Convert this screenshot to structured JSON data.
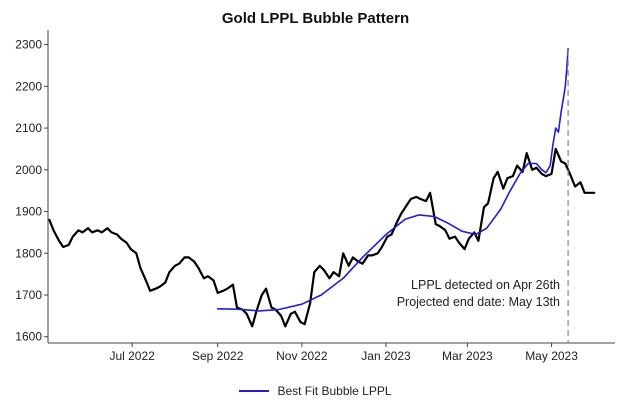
{
  "chart_data": {
    "type": "line",
    "title": "Gold LPPL Bubble Pattern",
    "xlabel": "",
    "ylabel": "",
    "ylim": [
      1585,
      2335
    ],
    "xlim": [
      "2022-05-01",
      "2023-06-16"
    ],
    "yticks": [
      1600,
      1700,
      1800,
      1900,
      2000,
      2100,
      2200,
      2300
    ],
    "xticks": [
      {
        "date": "2022-07-01",
        "label": "Jul 2022"
      },
      {
        "date": "2022-09-01",
        "label": "Sep 2022"
      },
      {
        "date": "2022-11-01",
        "label": "Nov 2022"
      },
      {
        "date": "2023-01-01",
        "label": "Jan 2023"
      },
      {
        "date": "2023-03-01",
        "label": "Mar 2023"
      },
      {
        "date": "2023-05-01",
        "label": "May 2023"
      }
    ],
    "grid": false,
    "legend_position": "bottom-center",
    "series": [
      {
        "name": "",
        "color": "#000000",
        "points": [
          [
            "2022-05-02",
            1880
          ],
          [
            "2022-05-05",
            1855
          ],
          [
            "2022-05-09",
            1830
          ],
          [
            "2022-05-12",
            1815
          ],
          [
            "2022-05-16",
            1820
          ],
          [
            "2022-05-19",
            1840
          ],
          [
            "2022-05-23",
            1855
          ],
          [
            "2022-05-26",
            1850
          ],
          [
            "2022-05-30",
            1860
          ],
          [
            "2022-06-02",
            1850
          ],
          [
            "2022-06-06",
            1855
          ],
          [
            "2022-06-09",
            1850
          ],
          [
            "2022-06-13",
            1860
          ],
          [
            "2022-06-16",
            1850
          ],
          [
            "2022-06-20",
            1845
          ],
          [
            "2022-06-23",
            1835
          ],
          [
            "2022-06-27",
            1825
          ],
          [
            "2022-06-30",
            1810
          ],
          [
            "2022-07-04",
            1800
          ],
          [
            "2022-07-07",
            1765
          ],
          [
            "2022-07-11",
            1735
          ],
          [
            "2022-07-14",
            1710
          ],
          [
            "2022-07-18",
            1715
          ],
          [
            "2022-07-21",
            1720
          ],
          [
            "2022-07-25",
            1730
          ],
          [
            "2022-07-28",
            1755
          ],
          [
            "2022-08-01",
            1770
          ],
          [
            "2022-08-04",
            1775
          ],
          [
            "2022-08-08",
            1790
          ],
          [
            "2022-08-11",
            1790
          ],
          [
            "2022-08-15",
            1780
          ],
          [
            "2022-08-18",
            1765
          ],
          [
            "2022-08-22",
            1740
          ],
          [
            "2022-08-25",
            1745
          ],
          [
            "2022-08-29",
            1735
          ],
          [
            "2022-09-01",
            1705
          ],
          [
            "2022-09-05",
            1710
          ],
          [
            "2022-09-08",
            1715
          ],
          [
            "2022-09-12",
            1725
          ],
          [
            "2022-09-15",
            1670
          ],
          [
            "2022-09-19",
            1665
          ],
          [
            "2022-09-22",
            1655
          ],
          [
            "2022-09-26",
            1625
          ],
          [
            "2022-09-29",
            1660
          ],
          [
            "2022-10-03",
            1700
          ],
          [
            "2022-10-06",
            1715
          ],
          [
            "2022-10-10",
            1670
          ],
          [
            "2022-10-13",
            1665
          ],
          [
            "2022-10-17",
            1650
          ],
          [
            "2022-10-20",
            1625
          ],
          [
            "2022-10-24",
            1655
          ],
          [
            "2022-10-27",
            1660
          ],
          [
            "2022-10-31",
            1635
          ],
          [
            "2022-11-03",
            1630
          ],
          [
            "2022-11-07",
            1680
          ],
          [
            "2022-11-10",
            1755
          ],
          [
            "2022-11-14",
            1770
          ],
          [
            "2022-11-17",
            1760
          ],
          [
            "2022-11-21",
            1740
          ],
          [
            "2022-11-24",
            1755
          ],
          [
            "2022-11-28",
            1745
          ],
          [
            "2022-12-01",
            1800
          ],
          [
            "2022-12-05",
            1770
          ],
          [
            "2022-12-08",
            1790
          ],
          [
            "2022-12-12",
            1780
          ],
          [
            "2022-12-15",
            1775
          ],
          [
            "2022-12-19",
            1795
          ],
          [
            "2022-12-22",
            1795
          ],
          [
            "2022-12-26",
            1800
          ],
          [
            "2022-12-29",
            1815
          ],
          [
            "2023-01-02",
            1840
          ],
          [
            "2023-01-05",
            1845
          ],
          [
            "2023-01-09",
            1875
          ],
          [
            "2023-01-12",
            1895
          ],
          [
            "2023-01-16",
            1915
          ],
          [
            "2023-01-19",
            1930
          ],
          [
            "2023-01-23",
            1935
          ],
          [
            "2023-01-26",
            1930
          ],
          [
            "2023-01-30",
            1925
          ],
          [
            "2023-02-02",
            1945
          ],
          [
            "2023-02-06",
            1870
          ],
          [
            "2023-02-09",
            1865
          ],
          [
            "2023-02-13",
            1855
          ],
          [
            "2023-02-16",
            1835
          ],
          [
            "2023-02-20",
            1840
          ],
          [
            "2023-02-23",
            1825
          ],
          [
            "2023-02-27",
            1810
          ],
          [
            "2023-03-02",
            1835
          ],
          [
            "2023-03-06",
            1850
          ],
          [
            "2023-03-09",
            1830
          ],
          [
            "2023-03-13",
            1910
          ],
          [
            "2023-03-16",
            1920
          ],
          [
            "2023-03-20",
            1980
          ],
          [
            "2023-03-23",
            1995
          ],
          [
            "2023-03-27",
            1955
          ],
          [
            "2023-03-30",
            1980
          ],
          [
            "2023-04-03",
            1985
          ],
          [
            "2023-04-06",
            2010
          ],
          [
            "2023-04-10",
            1995
          ],
          [
            "2023-04-13",
            2040
          ],
          [
            "2023-04-17",
            2000
          ],
          [
            "2023-04-20",
            2005
          ],
          [
            "2023-04-24",
            1990
          ],
          [
            "2023-04-27",
            1985
          ],
          [
            "2023-05-01",
            1990
          ],
          [
            "2023-05-04",
            2050
          ],
          [
            "2023-05-08",
            2020
          ],
          [
            "2023-05-11",
            2015
          ],
          [
            "2023-05-15",
            1985
          ],
          [
            "2023-05-18",
            1960
          ],
          [
            "2023-05-22",
            1970
          ],
          [
            "2023-05-25",
            1945
          ],
          [
            "2023-05-29",
            1945
          ],
          [
            "2023-06-01",
            1945
          ]
        ]
      },
      {
        "name": "Best Fit Bubble LPPL",
        "color": "#1f1fd0",
        "points": [
          [
            "2022-09-01",
            1667
          ],
          [
            "2022-09-15",
            1666
          ],
          [
            "2022-10-01",
            1662
          ],
          [
            "2022-10-15",
            1665
          ],
          [
            "2022-11-01",
            1678
          ],
          [
            "2022-11-15",
            1700
          ],
          [
            "2022-12-01",
            1740
          ],
          [
            "2022-12-15",
            1790
          ],
          [
            "2023-01-01",
            1845
          ],
          [
            "2023-01-15",
            1882
          ],
          [
            "2023-01-25",
            1892
          ],
          [
            "2023-02-05",
            1888
          ],
          [
            "2023-02-15",
            1872
          ],
          [
            "2023-02-25",
            1853
          ],
          [
            "2023-03-07",
            1845
          ],
          [
            "2023-03-15",
            1860
          ],
          [
            "2023-03-25",
            1905
          ],
          [
            "2023-04-01",
            1950
          ],
          [
            "2023-04-08",
            1990
          ],
          [
            "2023-04-14",
            2015
          ],
          [
            "2023-04-20",
            2015
          ],
          [
            "2023-04-24",
            2000
          ],
          [
            "2023-04-27",
            1993
          ],
          [
            "2023-04-30",
            2010
          ],
          [
            "2023-05-02",
            2060
          ],
          [
            "2023-05-04",
            2100
          ],
          [
            "2023-05-06",
            2090
          ],
          [
            "2023-05-08",
            2140
          ],
          [
            "2023-05-10",
            2180
          ],
          [
            "2023-05-11",
            2200
          ],
          [
            "2023-05-12",
            2240
          ],
          [
            "2023-05-13",
            2290
          ]
        ]
      }
    ],
    "projected_end_date": "2023-05-13",
    "annotations": [
      "LPPL detected on Apr 26th",
      "Projected end date: May 13th"
    ]
  }
}
